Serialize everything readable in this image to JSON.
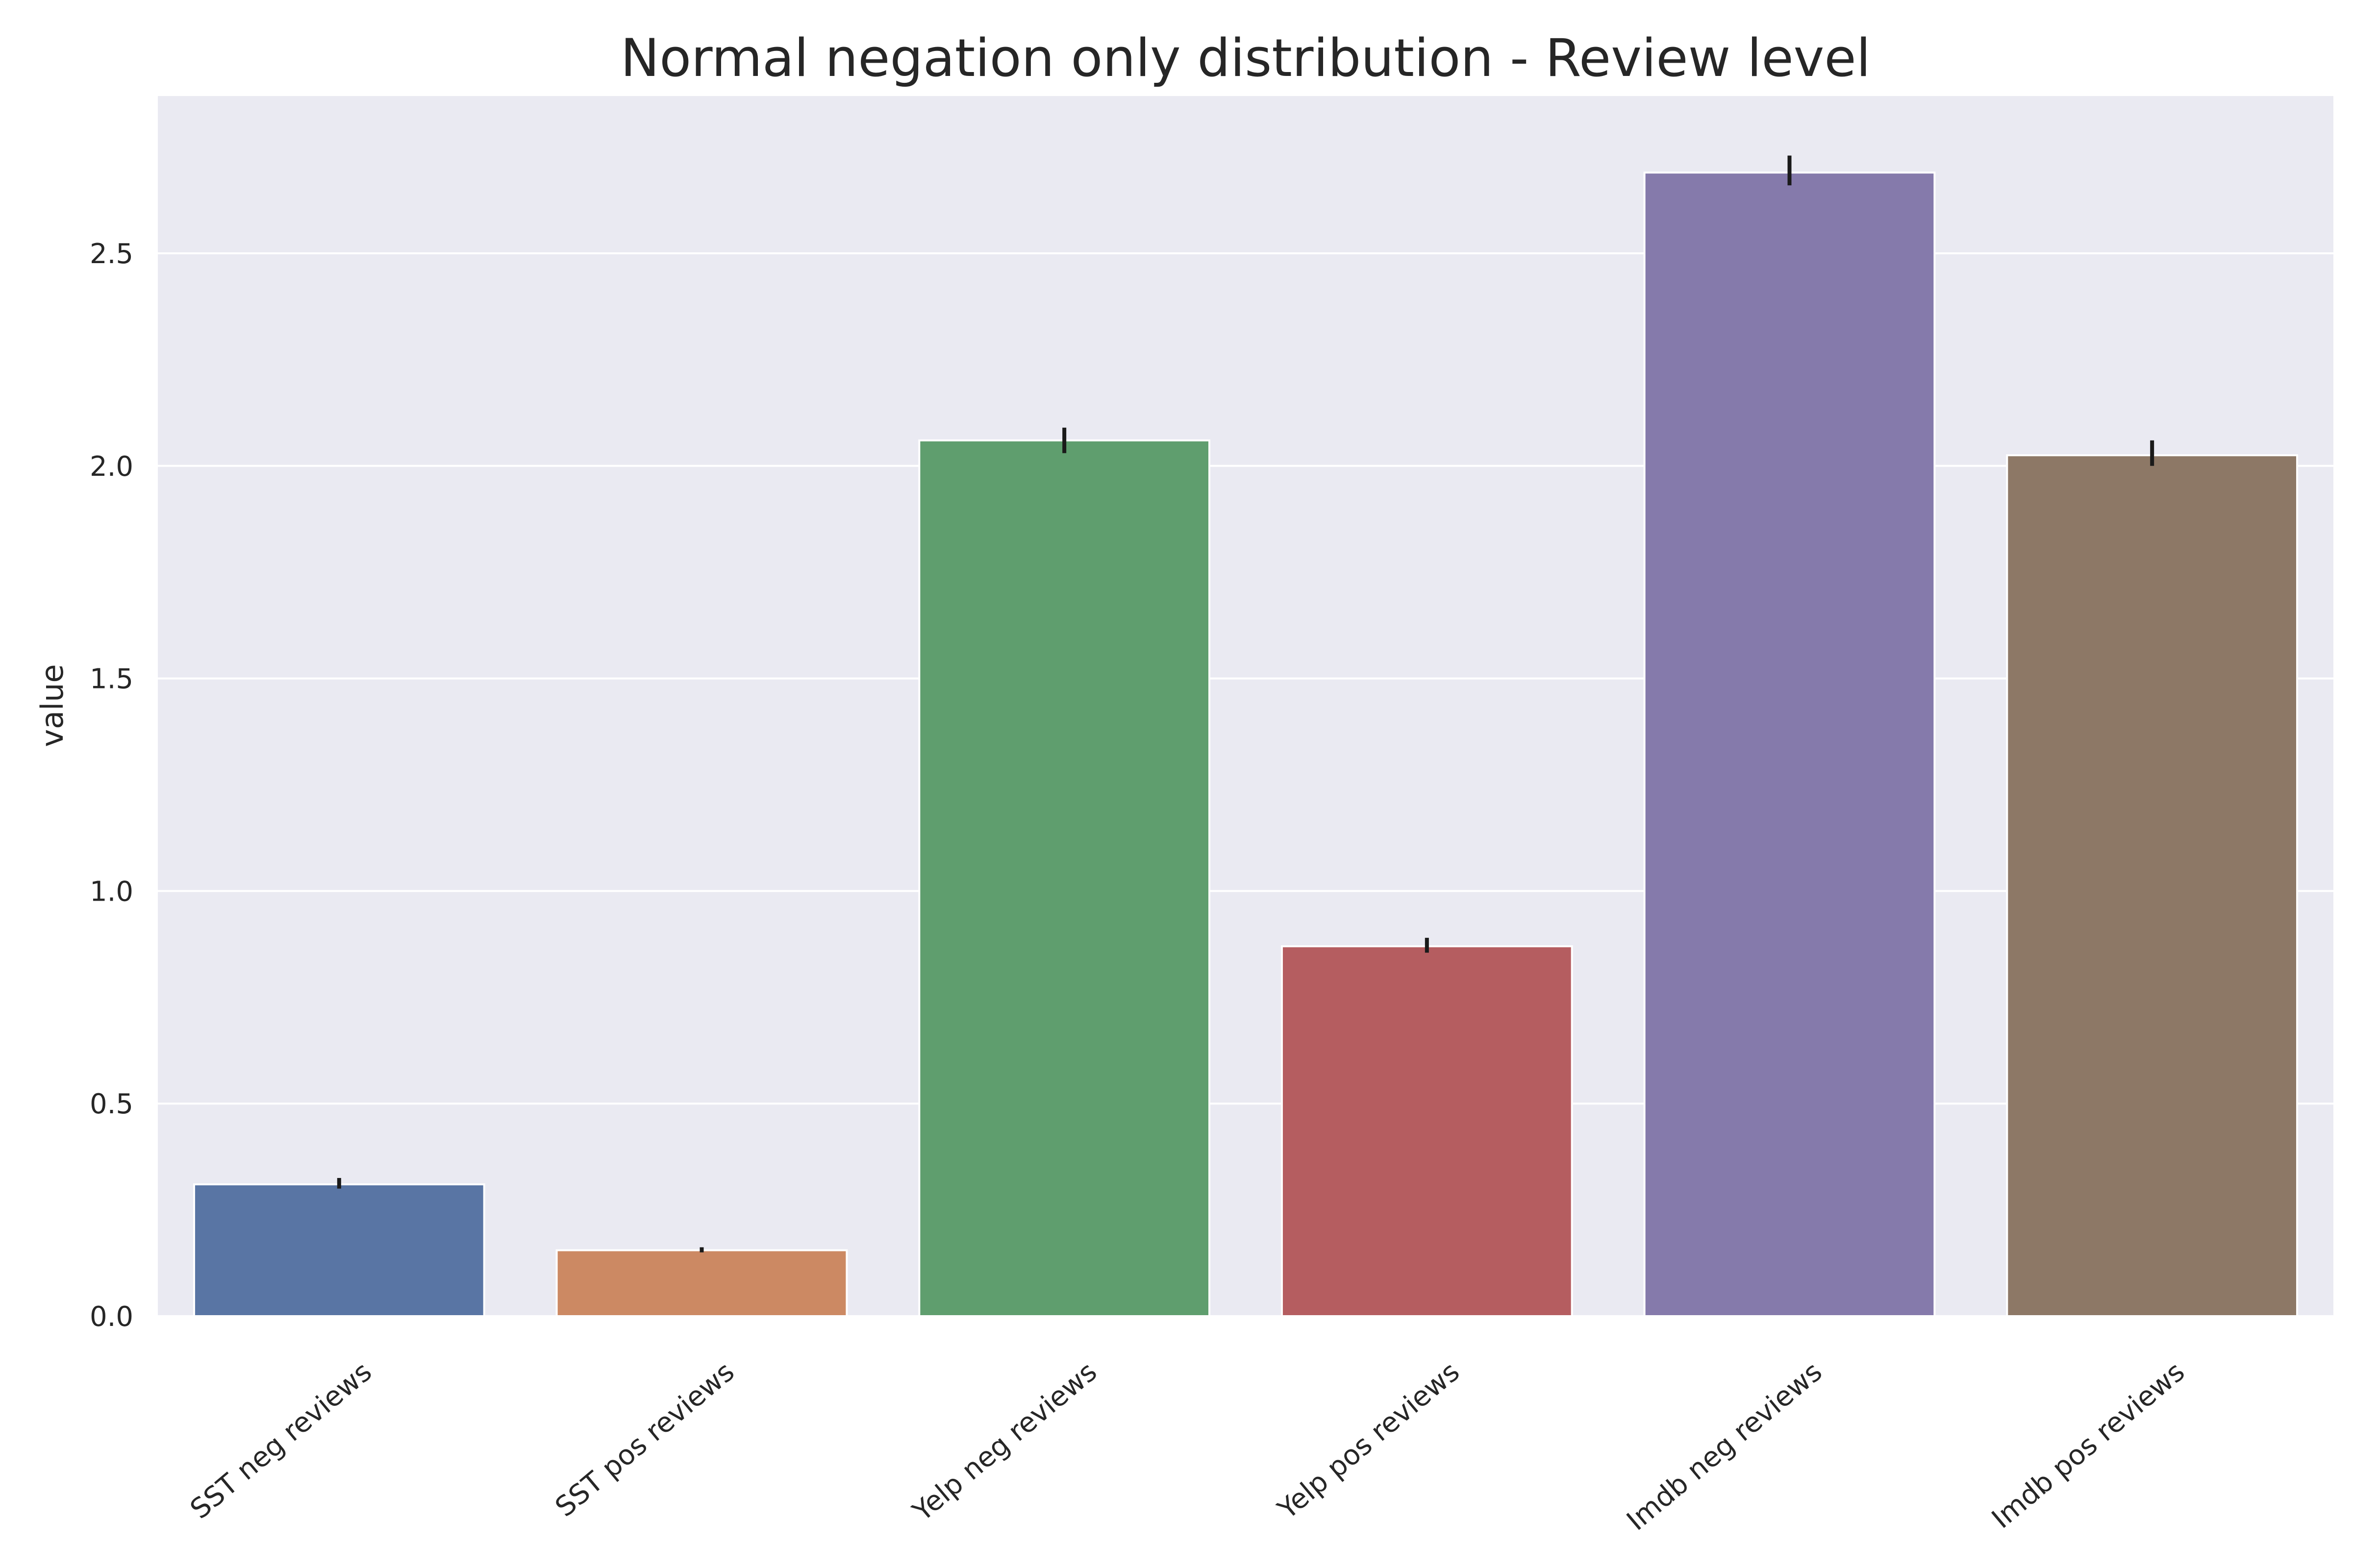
{
  "chart_data": {
    "type": "bar",
    "title": "Normal negation only distribution - Review level",
    "xlabel": "",
    "ylabel": "value",
    "categories": [
      "SST neg reviews",
      "SST pos reviews",
      "Yelp neg reviews",
      "Yelp pos reviews",
      "Imdb neg reviews",
      "Imdb pos reviews"
    ],
    "values": [
      0.31,
      0.155,
      2.06,
      0.87,
      2.69,
      2.025
    ],
    "error_bars": [
      [
        0.3,
        0.325
      ],
      [
        0.15,
        0.162
      ],
      [
        2.03,
        2.09
      ],
      [
        0.855,
        0.89
      ],
      [
        2.66,
        2.73
      ],
      [
        2.0,
        2.06
      ]
    ],
    "colors": [
      "#5975a4",
      "#cc8963",
      "#5f9e6e",
      "#b55d60",
      "#857aab",
      "#8d7866"
    ],
    "ylim": [
      0,
      2.87
    ],
    "yticks": [
      0.0,
      0.5,
      1.0,
      1.5,
      2.0,
      2.5
    ],
    "ytick_labels": [
      "0.0",
      "0.5",
      "1.0",
      "1.5",
      "2.0",
      "2.5"
    ],
    "grid": true,
    "background": "#eaeaf2"
  }
}
